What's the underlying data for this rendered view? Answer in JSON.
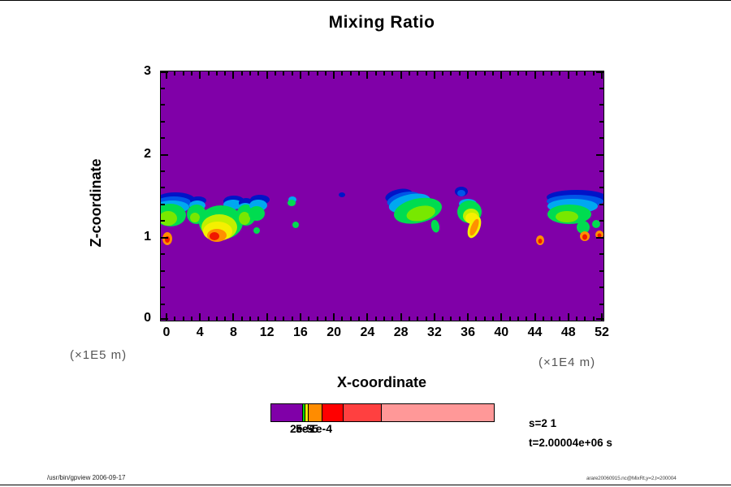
{
  "title": "Mixing Ratio",
  "plot": {
    "bg_color": "#8000A8",
    "x_axis": {
      "label": "X-coordinate",
      "tick_values": [
        0,
        4,
        8,
        12,
        16,
        20,
        24,
        28,
        32,
        36,
        40,
        44,
        48,
        52
      ],
      "minor_step": 1,
      "unit_right": "(×1E4 m)",
      "unit_left": "(×1E5 m)"
    },
    "y_axis": {
      "label": "Z-coordinate",
      "tick_values": [
        0,
        1,
        2,
        3
      ],
      "minor_step": 0.2
    }
  },
  "colorbar": {
    "labels": [
      "2e-5",
      "5e-5",
      "1e-4"
    ],
    "segments": [
      {
        "color": "#8000A8",
        "width": 38
      },
      {
        "color": "#00DC00",
        "width": 3
      },
      {
        "color": "#F0F000",
        "width": 4
      },
      {
        "color": "#FF8C00",
        "width": 17
      },
      {
        "color": "#FF0000",
        "width": 26
      },
      {
        "color": "#FF4040",
        "width": 47
      },
      {
        "color": "#FF9898",
        "width": 139
      }
    ]
  },
  "annotations": {
    "step": "s=2 1",
    "time": "t=2.00004e+06 s"
  },
  "footer": {
    "left": "/usr/bin/gpview 2006-09-17",
    "right": "arare20060915.nc@MixRt,y=2,t=200004"
  },
  "chart_data": {
    "type": "heatmap",
    "title": "Mixing Ratio",
    "xlabel": "X-coordinate",
    "ylabel": "Z-coordinate",
    "x_unit": "×1E4 m",
    "y_unit": "×1E5 m",
    "xlim": [
      0,
      52
    ],
    "ylim": [
      0,
      3
    ],
    "x_ticks": [
      0,
      4,
      8,
      12,
      16,
      20,
      24,
      28,
      32,
      36,
      40,
      44,
      48,
      52
    ],
    "y_ticks": [
      0,
      1,
      2,
      3
    ],
    "grid": false,
    "legend_position": "bottom-colorbar",
    "contour_levels_labeled": [
      "2e-5",
      "5e-5",
      "1e-4"
    ],
    "background_value_color": "#8000A8",
    "palette_low_to_high": [
      "#8000A8",
      "#0014C8",
      "#0055E8",
      "#00A8F0",
      "#00DC50",
      "#78E800",
      "#C0F000",
      "#F5F000",
      "#FFC000",
      "#FF9000",
      "#F01800"
    ],
    "features": [
      {
        "x_range": [
          0,
          4.5
        ],
        "z_range": [
          0.9,
          1.55
        ],
        "peak_level": "yellow-green",
        "desc": "left cloud band with blue caps near z=1.5 and small red spot at x=0.5, z=1.0"
      },
      {
        "x_range": [
          4.5,
          9
        ],
        "z_range": [
          0.9,
          1.55
        ],
        "peak_level": "red",
        "desc": "strongest cluster: green shell, yellow-orange interior, red core near z=1"
      },
      {
        "x_range": [
          9.5,
          13.5
        ],
        "z_range": [
          1.05,
          1.55
        ],
        "peak_level": "green",
        "desc": "blob with dark-blue cap and green body"
      },
      {
        "x_range": [
          14.5,
          17
        ],
        "z_range": [
          1.05,
          1.5
        ],
        "peak_level": "green",
        "desc": "two small green specks"
      },
      {
        "x": 21.5,
        "z": 1.5,
        "peak_level": "blue",
        "desc": "tiny speck"
      },
      {
        "x_range": [
          27,
          34.5
        ],
        "z_range": [
          1.1,
          1.6
        ],
        "peak_level": "yellow-green",
        "desc": "large tilted cluster, blue cap upper-left, green body"
      },
      {
        "x_range": [
          34.5,
          38.5
        ],
        "z_range": [
          0.95,
          1.55
        ],
        "peak_level": "orange",
        "desc": "cluster with orange streak descending to z=1"
      },
      {
        "x": 44.8,
        "z": 0.97,
        "peak_level": "red",
        "desc": "small orange-red spot"
      },
      {
        "x_range": [
          45.5,
          52.3
        ],
        "z_range": [
          0.95,
          1.55
        ],
        "peak_level": "red",
        "desc": "right band with long blue cap and two small red spots near z=1"
      }
    ],
    "annotations": [
      "s=2 1",
      "t=2.00004e+06 s"
    ]
  }
}
